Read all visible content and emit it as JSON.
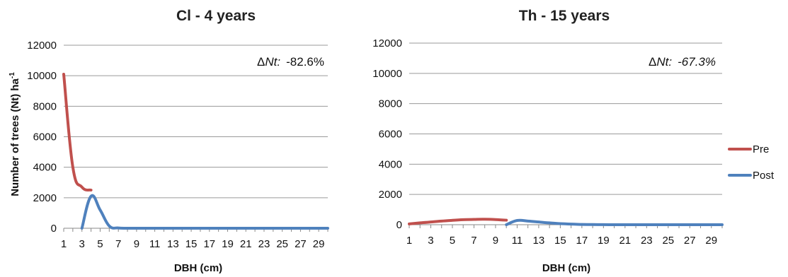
{
  "chart_data": [
    {
      "type": "line",
      "title": "Cl - 4 years",
      "xlabel": "DBH (cm)",
      "ylabel_main": "Number of trees (Nt) ha",
      "ylabel_sup": "-1",
      "annotation_prefix": "Δ",
      "annotation_var": "Nt:",
      "annotation_value": "-82.6%",
      "ylim": [
        0,
        12000
      ],
      "yticks": [
        "0",
        "2000",
        "4000",
        "6000",
        "8000",
        "10000",
        "12000"
      ],
      "xlim": [
        1,
        30
      ],
      "xticks": [
        "1",
        "3",
        "5",
        "7",
        "9",
        "11",
        "13",
        "15",
        "17",
        "19",
        "21",
        "23",
        "25",
        "27",
        "29"
      ],
      "grid": true,
      "series": [
        {
          "name": "Pre",
          "color": "#c0504d",
          "x": [
            1,
            2,
            3,
            4
          ],
          "y": [
            10100,
            4000,
            2700,
            2500
          ]
        },
        {
          "name": "Post",
          "color": "#4f81bd",
          "x": [
            3,
            4,
            5,
            6,
            7,
            8,
            9,
            10,
            11,
            12,
            13,
            14,
            15,
            16,
            17,
            18,
            19,
            20,
            21,
            22,
            23,
            24,
            25,
            26,
            27,
            28,
            29,
            30
          ],
          "y": [
            0,
            2100,
            1200,
            150,
            20,
            0,
            0,
            0,
            0,
            0,
            0,
            0,
            0,
            0,
            0,
            0,
            0,
            0,
            0,
            0,
            0,
            0,
            0,
            0,
            0,
            0,
            0,
            0
          ]
        }
      ]
    },
    {
      "type": "line",
      "title": "Th - 15 years",
      "xlabel": "DBH (cm)",
      "annotation_prefix": "Δ",
      "annotation_var": "Nt:",
      "annotation_value": "-67.3%",
      "ylim": [
        0,
        12000
      ],
      "yticks": [
        "0",
        "2000",
        "4000",
        "6000",
        "8000",
        "10000",
        "12000"
      ],
      "xlim": [
        1,
        30
      ],
      "xticks": [
        "1",
        "3",
        "5",
        "7",
        "9",
        "11",
        "13",
        "15",
        "17",
        "19",
        "21",
        "23",
        "25",
        "27",
        "29"
      ],
      "grid": true,
      "legend_position": "right",
      "series": [
        {
          "name": "Pre",
          "color": "#c0504d",
          "x": [
            1,
            2,
            3,
            4,
            5,
            6,
            7,
            8,
            9,
            10
          ],
          "y": [
            50,
            120,
            180,
            240,
            290,
            330,
            350,
            360,
            340,
            300
          ]
        },
        {
          "name": "Post",
          "color": "#4f81bd",
          "x": [
            10,
            11,
            12,
            13,
            14,
            15,
            16,
            17,
            18,
            19,
            20,
            21,
            22,
            23,
            24,
            25,
            26,
            27,
            28,
            29,
            30
          ],
          "y": [
            0,
            280,
            240,
            180,
            120,
            70,
            40,
            20,
            10,
            5,
            0,
            0,
            0,
            0,
            0,
            0,
            0,
            0,
            0,
            0,
            0
          ]
        }
      ]
    }
  ]
}
